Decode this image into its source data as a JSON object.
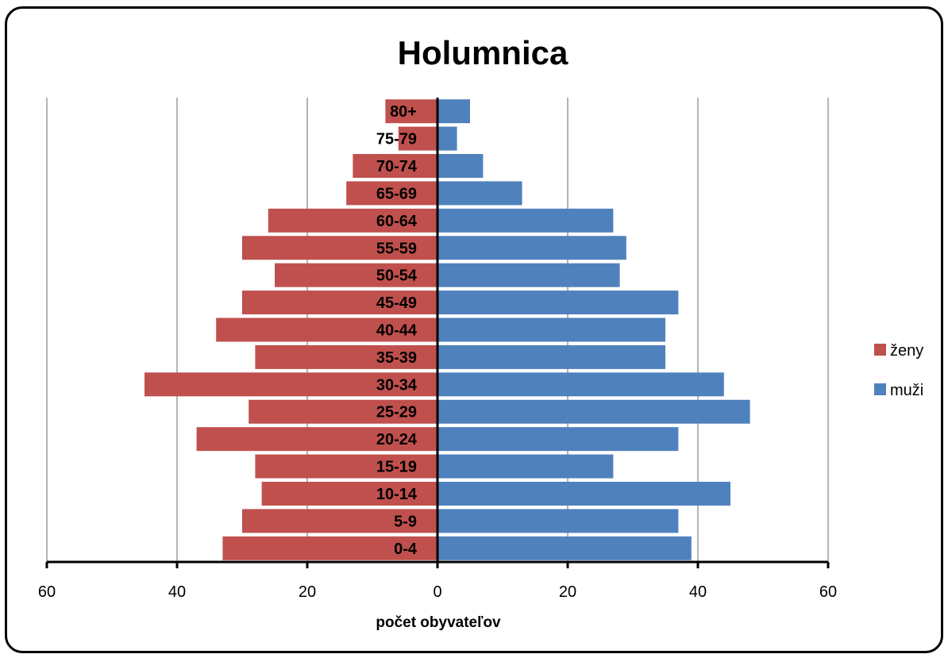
{
  "chart_data": {
    "type": "bar",
    "orientation": "horizontal",
    "title": "Holumnica",
    "xlabel": "počet obyvateľov",
    "ylabel": "",
    "xlim": [
      -60,
      60
    ],
    "x_ticks": [
      -60,
      -40,
      -20,
      0,
      20,
      40,
      60
    ],
    "x_tick_labels": [
      "60",
      "40",
      "20",
      "0",
      "20",
      "40",
      "60"
    ],
    "grid": "vertical",
    "legend": "right",
    "categories": [
      "0-4",
      "5-9",
      "10-14",
      "15-19",
      "20-24",
      "25-29",
      "30-34",
      "35-39",
      "40-44",
      "45-49",
      "50-54",
      "55-59",
      "60-64",
      "65-69",
      "70-74",
      "75-79",
      "80+"
    ],
    "series": [
      {
        "name": "ženy",
        "color": "#c0504d",
        "values": [
          -33,
          -30,
          -27,
          -28,
          -37,
          -29,
          -45,
          -28,
          -34,
          -30,
          -25,
          -30,
          -26,
          -14,
          -13,
          -6,
          -8
        ]
      },
      {
        "name": "muži",
        "color": "#4f81bd",
        "values": [
          39,
          37,
          45,
          27,
          37,
          48,
          44,
          35,
          35,
          37,
          28,
          29,
          27,
          13,
          7,
          3,
          5
        ]
      }
    ]
  }
}
